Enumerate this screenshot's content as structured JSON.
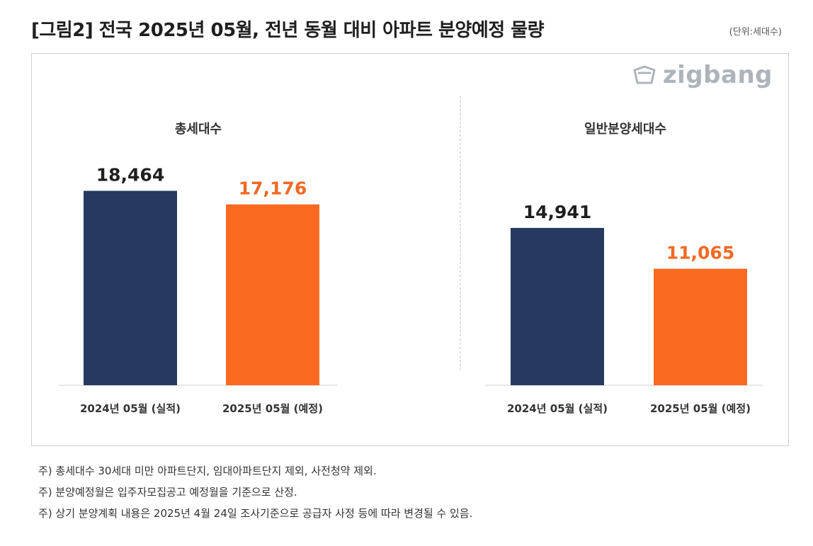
{
  "title": "[그림2] 전국 2025년 05월, 전년 동월 대비 아파트 분양예정 물량",
  "unit_label": "(단위:세대수)",
  "logo_text": "zigbang",
  "colors": {
    "actual": "#253a5e",
    "planned": "#fb6a21",
    "planned_label": "#f06a24"
  },
  "chart_data": [
    {
      "type": "bar",
      "title": "총세대수",
      "categories": [
        "2024년 05월 (실적)",
        "2025년 05월 (예정)"
      ],
      "values": [
        18464,
        17176
      ],
      "value_labels": [
        "18,464",
        "17,176"
      ],
      "ylim": [
        0,
        23000
      ],
      "grid": false
    },
    {
      "type": "bar",
      "title": "일반분양세대수",
      "categories": [
        "2024년 05월 (실적)",
        "2025년 05월 (예정)"
      ],
      "values": [
        14941,
        11065
      ],
      "value_labels": [
        "14,941",
        "11,065"
      ],
      "ylim": [
        0,
        23000
      ],
      "grid": false
    }
  ],
  "notes": [
    "주) 총세대수 30세대 미만 아파트단지, 임대아파트단지 제외, 사전청약 제외.",
    "주) 분양예정월은 입주자모집공고 예정월을 기준으로 산정.",
    "주) 상기 분양계획 내용은 2025년 4월  24일  조사기준으로 공급자 사정 등에 따라 변경될 수 있음."
  ]
}
